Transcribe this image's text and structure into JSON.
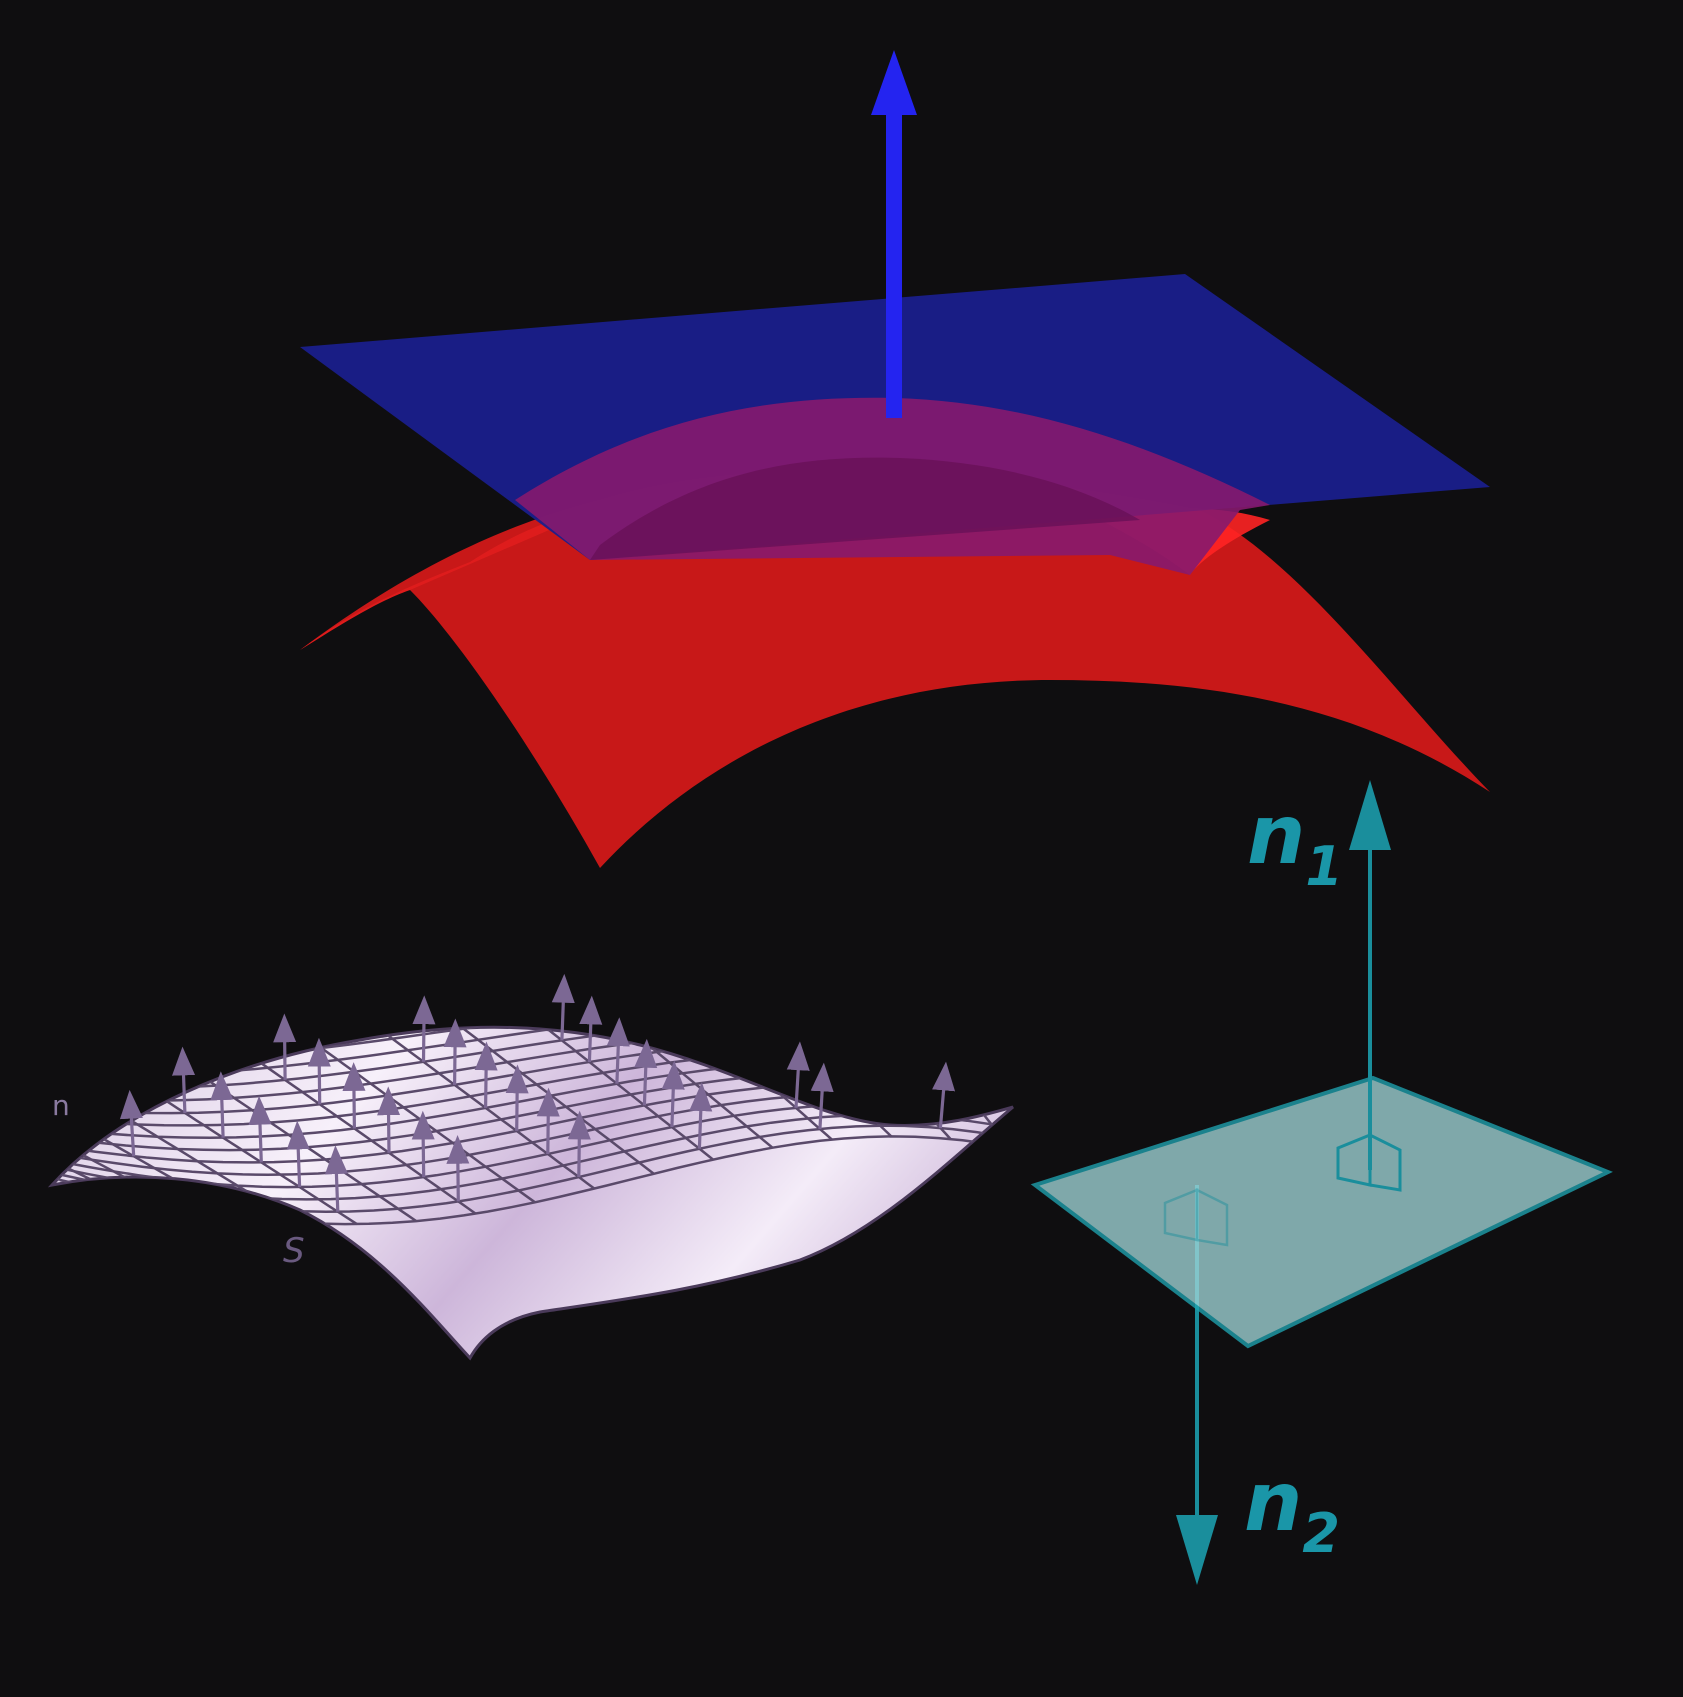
{
  "labels": {
    "n1_main": "n",
    "n1_sub": "1",
    "n2_main": "n",
    "n2_sub": "2",
    "surface_normal": "n",
    "surface_name": "S"
  },
  "colors": {
    "background": "#0f0e10",
    "tangent_plane": "#1a1f8c",
    "normal_arrow": "#2424f0",
    "red_surface": "#c81818",
    "red_highlight": "#ff2020",
    "overlap": "#7a1466",
    "lavender_surface": "#e8dcef",
    "lavender_grid": "#5a4a6a",
    "lavender_arrow": "#7c6894",
    "teal_plane": "#9fd4d6",
    "teal_edge": "#1fa3b0",
    "teal_arrow": "#1a8e9c",
    "teal_text": "#1a96a8"
  }
}
